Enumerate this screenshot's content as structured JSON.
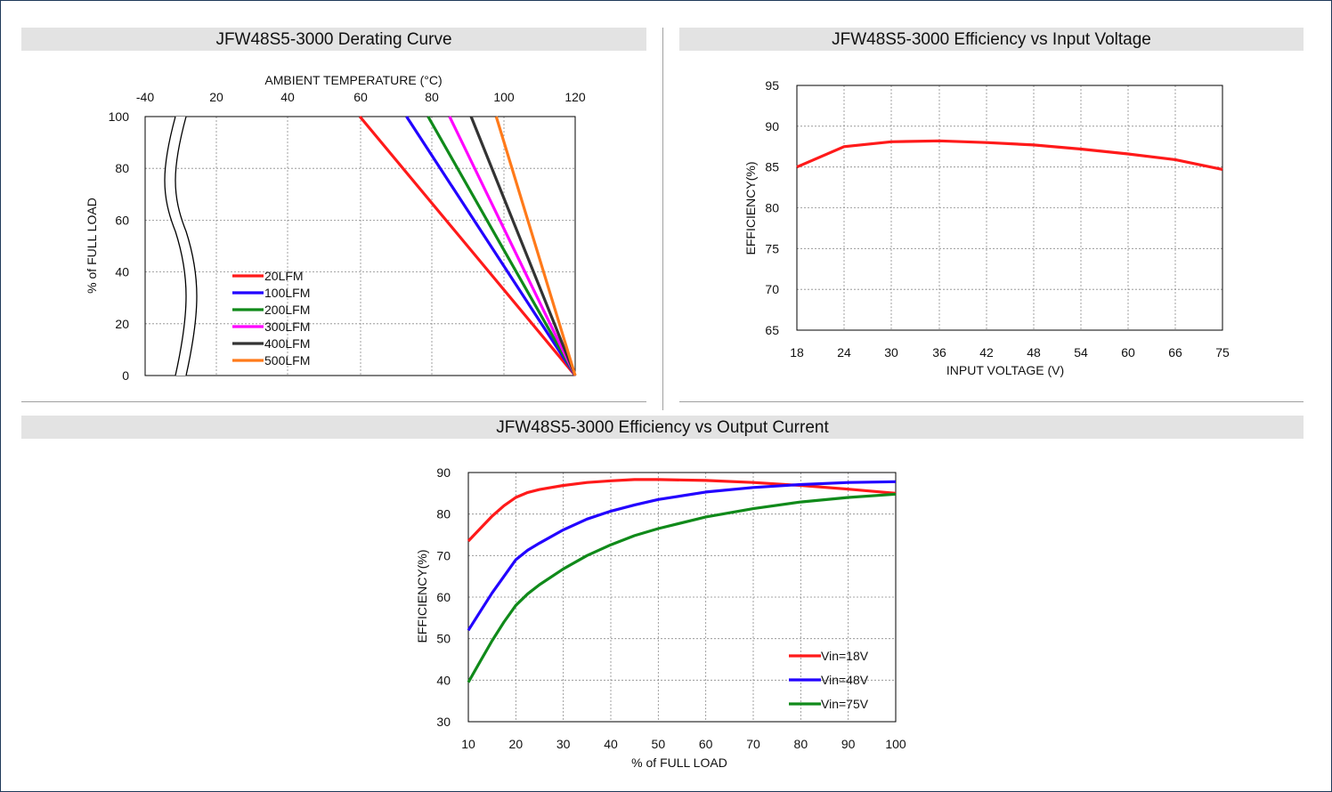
{
  "colors": {
    "band_bg": "#e3e3e3",
    "frame": "#1f3a5a",
    "grid": "#8a8a8a",
    "series": {
      "20LFM": "#ff1a1a",
      "100LFM": "#2200ff",
      "200LFM": "#108a1a",
      "300LFM": "#ff00ff",
      "400LFM": "#333333",
      "500LFM": "#ff7a1a",
      "Vin=18V": "#ff1a1a",
      "Vin=48V": "#2200ff",
      "Vin=75V": "#108a1a"
    }
  },
  "charts": {
    "derating": {
      "title": "JFW48S5-3000 Derating Curve"
    },
    "eff_vin": {
      "title": "JFW48S5-3000 Efficiency vs Input Voltage"
    },
    "eff_iout": {
      "title": "JFW48S5-3000 Efficiency vs Output Current"
    }
  },
  "chart_data": [
    {
      "type": "line",
      "title": "JFW48S5-3000 Derating Curve",
      "xlabel": "AMBIENT TEMPERATURE (°C)",
      "ylabel": "% of FULL LOAD",
      "x_ticks": [
        "-40",
        "20",
        "40",
        "60",
        "80",
        "100",
        "120"
      ],
      "y_ticks": [
        "0",
        "20",
        "40",
        "60",
        "80",
        "100"
      ],
      "xlim": [
        0,
        120
      ],
      "ylim": [
        0,
        100
      ],
      "axis_break": "between -40 and 20",
      "grid": true,
      "legend": "lower-left",
      "series": [
        {
          "name": "20LFM",
          "x": [
            60,
            120
          ],
          "y": [
            100,
            0
          ]
        },
        {
          "name": "100LFM",
          "x": [
            73,
            120
          ],
          "y": [
            100,
            0
          ]
        },
        {
          "name": "200LFM",
          "x": [
            79,
            120
          ],
          "y": [
            100,
            0
          ]
        },
        {
          "name": "300LFM",
          "x": [
            85,
            120
          ],
          "y": [
            100,
            0
          ]
        },
        {
          "name": "400LFM",
          "x": [
            91,
            120
          ],
          "y": [
            100,
            0
          ]
        },
        {
          "name": "500LFM",
          "x": [
            98,
            120
          ],
          "y": [
            100,
            0
          ]
        }
      ]
    },
    {
      "type": "line",
      "title": "JFW48S5-3000 Efficiency vs Input Voltage",
      "xlabel": "INPUT VOLTAGE (V)",
      "ylabel": "EFFICIENCY(%)",
      "x_ticks": [
        "18",
        "24",
        "30",
        "36",
        "42",
        "48",
        "54",
        "60",
        "66",
        "75"
      ],
      "y_ticks": [
        "65",
        "70",
        "75",
        "80",
        "85",
        "90",
        "95"
      ],
      "ylim": [
        65,
        95
      ],
      "grid": true,
      "series": [
        {
          "x": [
            18,
            24,
            30,
            36,
            42,
            48,
            54,
            60,
            66,
            75
          ],
          "y": [
            85.0,
            87.5,
            88.1,
            88.2,
            88.0,
            87.7,
            87.2,
            86.6,
            85.9,
            84.7
          ]
        }
      ]
    },
    {
      "type": "line",
      "title": "JFW48S5-3000 Efficiency vs Output Current",
      "xlabel": "% of FULL LOAD",
      "ylabel": "EFFICIENCY(%)",
      "x_ticks": [
        "10",
        "20",
        "30",
        "40",
        "50",
        "60",
        "70",
        "80",
        "90",
        "100"
      ],
      "y_ticks": [
        "30",
        "40",
        "50",
        "60",
        "70",
        "80",
        "90"
      ],
      "xlim": [
        10,
        100
      ],
      "ylim": [
        30,
        90
      ],
      "grid": true,
      "legend": "lower-right",
      "series": [
        {
          "name": "Vin=18V",
          "x": [
            10,
            12.5,
            15,
            17.5,
            20,
            22.5,
            25,
            30,
            35,
            40,
            45,
            50,
            60,
            70,
            80,
            90,
            100
          ],
          "y": [
            73.5,
            76.5,
            79.5,
            82,
            84,
            85.2,
            85.9,
            86.9,
            87.6,
            88.0,
            88.3,
            88.3,
            88.1,
            87.6,
            86.9,
            86.0,
            85.0
          ]
        },
        {
          "name": "Vin=48V",
          "x": [
            10,
            12.5,
            15,
            17.5,
            20,
            22.5,
            25,
            30,
            35,
            40,
            45,
            50,
            60,
            70,
            80,
            90,
            100
          ],
          "y": [
            52,
            56.5,
            61,
            65,
            69,
            71.3,
            73,
            76.2,
            78.8,
            80.7,
            82.2,
            83.5,
            85.3,
            86.4,
            87.1,
            87.6,
            87.8
          ]
        },
        {
          "name": "Vin=75V",
          "x": [
            10,
            12.5,
            15,
            17.5,
            20,
            22.5,
            25,
            30,
            35,
            40,
            45,
            50,
            60,
            70,
            80,
            90,
            100
          ],
          "y": [
            39.5,
            44.5,
            49.5,
            54,
            58,
            60.8,
            63,
            66.8,
            70,
            72.6,
            74.8,
            76.5,
            79.3,
            81.3,
            82.9,
            84.0,
            84.8
          ]
        }
      ]
    }
  ]
}
